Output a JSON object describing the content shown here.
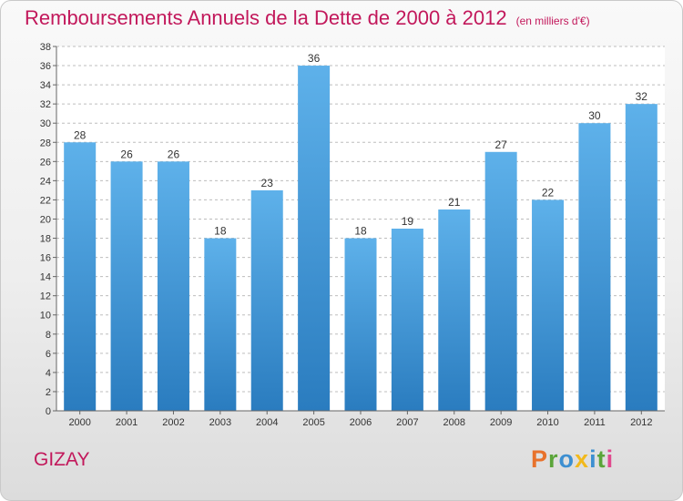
{
  "header": {
    "title": "Remboursements Annuels de la Dette de 2000 à 2012",
    "unit": "(en milliers d'€)"
  },
  "footer": {
    "location": "GIZAY",
    "brand": "Proxiti"
  },
  "colors": {
    "title": "#c2185b",
    "bar_top": "#5eb1ea",
    "bar_bottom": "#2a7cbf",
    "brand_letters": [
      "#e8722c",
      "#5ba53a",
      "#3d8fd1",
      "#f2b91c",
      "#3d8fd1",
      "#5ba53a",
      "#e04a8e"
    ]
  },
  "chart_data": {
    "type": "bar",
    "title": "Remboursements Annuels de la Dette de 2000 à 2012",
    "xlabel": "",
    "ylabel": "",
    "categories": [
      "2000",
      "2001",
      "2002",
      "2003",
      "2004",
      "2005",
      "2006",
      "2007",
      "2008",
      "2009",
      "2010",
      "2011",
      "2012"
    ],
    "values": [
      28,
      26,
      26,
      18,
      23,
      36,
      18,
      19,
      21,
      27,
      22,
      30,
      32
    ],
    "ylim": [
      0,
      38
    ],
    "yticks": [
      0,
      2,
      4,
      6,
      8,
      10,
      12,
      14,
      16,
      18,
      20,
      22,
      24,
      26,
      28,
      30,
      32,
      34,
      36,
      38
    ],
    "grid": "horizontal dashed",
    "legend": "none"
  }
}
